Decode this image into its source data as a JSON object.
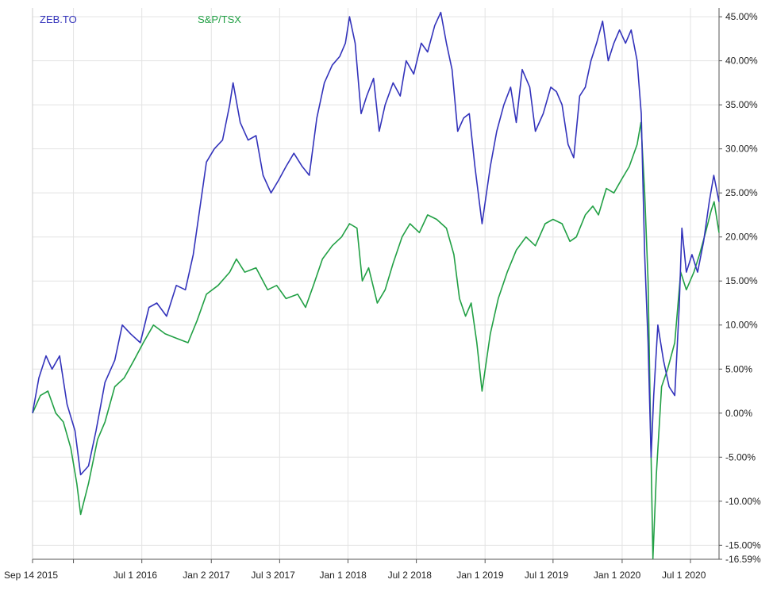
{
  "chart_data": {
    "type": "line",
    "title": "",
    "xlabel": "",
    "ylabel": "",
    "ylim": [
      -16.59,
      46
    ],
    "y_ticks": [
      45,
      40,
      35,
      30,
      25,
      20,
      15,
      10,
      5,
      0,
      -5,
      -10,
      -15,
      -16.59
    ],
    "y_tick_labels": [
      "45.00%",
      "40.00%",
      "35.00%",
      "30.00%",
      "25.00%",
      "20.00%",
      "15.00%",
      "10.00%",
      "5.00%",
      "0.00%",
      "-5.00%",
      "-10.00%",
      "-15.00%",
      "-16.59%"
    ],
    "x_range": [
      "2015-09-14",
      "2020-09-15"
    ],
    "x_ticks": [
      {
        "date": "2015-09-14",
        "label": "Sep 14 2015"
      },
      {
        "date": "2016-01-01",
        "label": ""
      },
      {
        "date": "2016-07-01",
        "label": "Jul 1 2016"
      },
      {
        "date": "2017-01-02",
        "label": "Jan 2 2017"
      },
      {
        "date": "2017-07-03",
        "label": "Jul 3 2017"
      },
      {
        "date": "2018-01-01",
        "label": "Jan 1 2018"
      },
      {
        "date": "2018-07-02",
        "label": "Jul 2 2018"
      },
      {
        "date": "2019-01-01",
        "label": "Jan 1 2019"
      },
      {
        "date": "2019-07-01",
        "label": "Jul 1 2019"
      },
      {
        "date": "2020-01-01",
        "label": "Jan 1 2020"
      },
      {
        "date": "2020-07-01",
        "label": "Jul 1 2020"
      }
    ],
    "grid": true,
    "legend_position": "top-left",
    "series": [
      {
        "name": "ZEB.TO",
        "color": "#3333bb",
        "points": [
          [
            "2015-09-14",
            0.0
          ],
          [
            "2015-10-01",
            4.0
          ],
          [
            "2015-10-20",
            6.5
          ],
          [
            "2015-11-05",
            5.0
          ],
          [
            "2015-11-25",
            6.5
          ],
          [
            "2015-12-15",
            1.0
          ],
          [
            "2016-01-05",
            -2.0
          ],
          [
            "2016-01-20",
            -7.0
          ],
          [
            "2016-02-10",
            -6.0
          ],
          [
            "2016-03-01",
            -2.0
          ],
          [
            "2016-03-25",
            3.5
          ],
          [
            "2016-04-20",
            6.0
          ],
          [
            "2016-05-10",
            10.0
          ],
          [
            "2016-06-01",
            9.0
          ],
          [
            "2016-06-27",
            8.0
          ],
          [
            "2016-07-20",
            12.0
          ],
          [
            "2016-08-10",
            12.5
          ],
          [
            "2016-09-05",
            11.0
          ],
          [
            "2016-10-01",
            14.5
          ],
          [
            "2016-10-25",
            14.0
          ],
          [
            "2016-11-15",
            18.0
          ],
          [
            "2016-12-05",
            24.0
          ],
          [
            "2016-12-20",
            28.5
          ],
          [
            "2017-01-10",
            30.0
          ],
          [
            "2017-02-01",
            31.0
          ],
          [
            "2017-02-20",
            35.0
          ],
          [
            "2017-03-01",
            37.5
          ],
          [
            "2017-03-20",
            33.0
          ],
          [
            "2017-04-10",
            31.0
          ],
          [
            "2017-05-01",
            31.5
          ],
          [
            "2017-05-20",
            27.0
          ],
          [
            "2017-06-10",
            25.0
          ],
          [
            "2017-07-01",
            26.5
          ],
          [
            "2017-07-20",
            28.0
          ],
          [
            "2017-08-10",
            29.5
          ],
          [
            "2017-09-01",
            28.0
          ],
          [
            "2017-09-20",
            27.0
          ],
          [
            "2017-10-10",
            33.5
          ],
          [
            "2017-10-30",
            37.5
          ],
          [
            "2017-11-20",
            39.5
          ],
          [
            "2017-12-10",
            40.5
          ],
          [
            "2017-12-25",
            42.0
          ],
          [
            "2018-01-05",
            45.0
          ],
          [
            "2018-01-20",
            42.0
          ],
          [
            "2018-02-05",
            34.0
          ],
          [
            "2018-02-20",
            36.0
          ],
          [
            "2018-03-10",
            38.0
          ],
          [
            "2018-03-25",
            32.0
          ],
          [
            "2018-04-10",
            35.0
          ],
          [
            "2018-05-01",
            37.5
          ],
          [
            "2018-05-20",
            36.0
          ],
          [
            "2018-06-05",
            40.0
          ],
          [
            "2018-06-25",
            38.5
          ],
          [
            "2018-07-15",
            42.0
          ],
          [
            "2018-08-01",
            41.0
          ],
          [
            "2018-08-20",
            44.0
          ],
          [
            "2018-09-05",
            45.5
          ],
          [
            "2018-09-20",
            42.0
          ],
          [
            "2018-10-05",
            39.0
          ],
          [
            "2018-10-20",
            32.0
          ],
          [
            "2018-11-05",
            33.5
          ],
          [
            "2018-11-20",
            34.0
          ],
          [
            "2018-12-05",
            28.0
          ],
          [
            "2018-12-24",
            21.5
          ],
          [
            "2019-01-15",
            28.0
          ],
          [
            "2019-02-01",
            32.0
          ],
          [
            "2019-02-20",
            35.0
          ],
          [
            "2019-03-10",
            37.0
          ],
          [
            "2019-03-25",
            33.0
          ],
          [
            "2019-04-10",
            39.0
          ],
          [
            "2019-04-30",
            37.0
          ],
          [
            "2019-05-15",
            32.0
          ],
          [
            "2019-06-05",
            34.0
          ],
          [
            "2019-06-25",
            37.0
          ],
          [
            "2019-07-10",
            36.5
          ],
          [
            "2019-07-25",
            35.0
          ],
          [
            "2019-08-10",
            30.5
          ],
          [
            "2019-08-25",
            29.0
          ],
          [
            "2019-09-10",
            36.0
          ],
          [
            "2019-09-25",
            37.0
          ],
          [
            "2019-10-10",
            40.0
          ],
          [
            "2019-10-25",
            42.0
          ],
          [
            "2019-11-10",
            44.5
          ],
          [
            "2019-11-25",
            40.0
          ],
          [
            "2019-12-10",
            42.0
          ],
          [
            "2019-12-25",
            43.5
          ],
          [
            "2020-01-10",
            42.0
          ],
          [
            "2020-01-25",
            43.5
          ],
          [
            "2020-02-10",
            40.0
          ],
          [
            "2020-02-21",
            34.0
          ],
          [
            "2020-03-01",
            18.0
          ],
          [
            "2020-03-10",
            8.0
          ],
          [
            "2020-03-18",
            -5.0
          ],
          [
            "2020-03-25",
            2.0
          ],
          [
            "2020-04-05",
            10.0
          ],
          [
            "2020-04-20",
            6.0
          ],
          [
            "2020-05-05",
            3.0
          ],
          [
            "2020-05-20",
            2.0
          ],
          [
            "2020-06-01",
            12.0
          ],
          [
            "2020-06-08",
            21.0
          ],
          [
            "2020-06-20",
            16.0
          ],
          [
            "2020-07-05",
            18.0
          ],
          [
            "2020-07-20",
            16.0
          ],
          [
            "2020-08-05",
            19.5
          ],
          [
            "2020-08-20",
            24.0
          ],
          [
            "2020-09-01",
            27.0
          ],
          [
            "2020-09-15",
            24.0
          ]
        ]
      },
      {
        "name": "S&P/TSX",
        "color": "#22a045",
        "points": [
          [
            "2015-09-14",
            0.0
          ],
          [
            "2015-10-05",
            2.0
          ],
          [
            "2015-10-25",
            2.5
          ],
          [
            "2015-11-15",
            0.0
          ],
          [
            "2015-12-05",
            -1.0
          ],
          [
            "2015-12-25",
            -4.0
          ],
          [
            "2016-01-10",
            -8.0
          ],
          [
            "2016-01-20",
            -11.5
          ],
          [
            "2016-02-10",
            -8.0
          ],
          [
            "2016-03-05",
            -3.0
          ],
          [
            "2016-03-25",
            -1.0
          ],
          [
            "2016-04-20",
            3.0
          ],
          [
            "2016-05-15",
            4.0
          ],
          [
            "2016-06-10",
            6.0
          ],
          [
            "2016-07-05",
            8.0
          ],
          [
            "2016-08-01",
            10.0
          ],
          [
            "2016-09-01",
            9.0
          ],
          [
            "2016-10-01",
            8.5
          ],
          [
            "2016-11-01",
            8.0
          ],
          [
            "2016-11-25",
            10.5
          ],
          [
            "2016-12-20",
            13.5
          ],
          [
            "2017-01-20",
            14.5
          ],
          [
            "2017-02-20",
            16.0
          ],
          [
            "2017-03-10",
            17.5
          ],
          [
            "2017-04-01",
            16.0
          ],
          [
            "2017-05-01",
            16.5
          ],
          [
            "2017-06-01",
            14.0
          ],
          [
            "2017-06-25",
            14.5
          ],
          [
            "2017-07-20",
            13.0
          ],
          [
            "2017-08-20",
            13.5
          ],
          [
            "2017-09-10",
            12.0
          ],
          [
            "2017-10-01",
            14.5
          ],
          [
            "2017-10-25",
            17.5
          ],
          [
            "2017-11-20",
            19.0
          ],
          [
            "2017-12-15",
            20.0
          ],
          [
            "2018-01-05",
            21.5
          ],
          [
            "2018-01-25",
            21.0
          ],
          [
            "2018-02-08",
            15.0
          ],
          [
            "2018-02-25",
            16.5
          ],
          [
            "2018-03-20",
            12.5
          ],
          [
            "2018-04-10",
            14.0
          ],
          [
            "2018-05-01",
            17.0
          ],
          [
            "2018-05-25",
            20.0
          ],
          [
            "2018-06-15",
            21.5
          ],
          [
            "2018-07-10",
            20.5
          ],
          [
            "2018-08-01",
            22.5
          ],
          [
            "2018-08-25",
            22.0
          ],
          [
            "2018-09-20",
            21.0
          ],
          [
            "2018-10-10",
            18.0
          ],
          [
            "2018-10-25",
            13.0
          ],
          [
            "2018-11-10",
            11.0
          ],
          [
            "2018-11-25",
            12.5
          ],
          [
            "2018-12-10",
            8.0
          ],
          [
            "2018-12-24",
            2.5
          ],
          [
            "2019-01-15",
            9.0
          ],
          [
            "2019-02-05",
            13.0
          ],
          [
            "2019-03-01",
            16.0
          ],
          [
            "2019-03-25",
            18.5
          ],
          [
            "2019-04-20",
            20.0
          ],
          [
            "2019-05-15",
            19.0
          ],
          [
            "2019-06-10",
            21.5
          ],
          [
            "2019-07-01",
            22.0
          ],
          [
            "2019-07-25",
            21.5
          ],
          [
            "2019-08-15",
            19.5
          ],
          [
            "2019-09-01",
            20.0
          ],
          [
            "2019-09-25",
            22.5
          ],
          [
            "2019-10-15",
            23.5
          ],
          [
            "2019-10-30",
            22.5
          ],
          [
            "2019-11-20",
            25.5
          ],
          [
            "2019-12-10",
            25.0
          ],
          [
            "2019-12-30",
            26.5
          ],
          [
            "2020-01-20",
            28.0
          ],
          [
            "2020-02-10",
            30.5
          ],
          [
            "2020-02-20",
            33.0
          ],
          [
            "2020-03-01",
            25.0
          ],
          [
            "2020-03-10",
            15.0
          ],
          [
            "2020-03-16",
            0.0
          ],
          [
            "2020-03-23",
            -16.5
          ],
          [
            "2020-04-01",
            -7.0
          ],
          [
            "2020-04-15",
            3.0
          ],
          [
            "2020-05-01",
            5.0
          ],
          [
            "2020-05-20",
            8.0
          ],
          [
            "2020-06-05",
            16.0
          ],
          [
            "2020-06-20",
            14.0
          ],
          [
            "2020-07-10",
            16.0
          ],
          [
            "2020-07-25",
            18.0
          ],
          [
            "2020-08-10",
            20.5
          ],
          [
            "2020-08-25",
            23.0
          ],
          [
            "2020-09-02",
            24.0
          ],
          [
            "2020-09-15",
            20.5
          ]
        ]
      }
    ]
  }
}
